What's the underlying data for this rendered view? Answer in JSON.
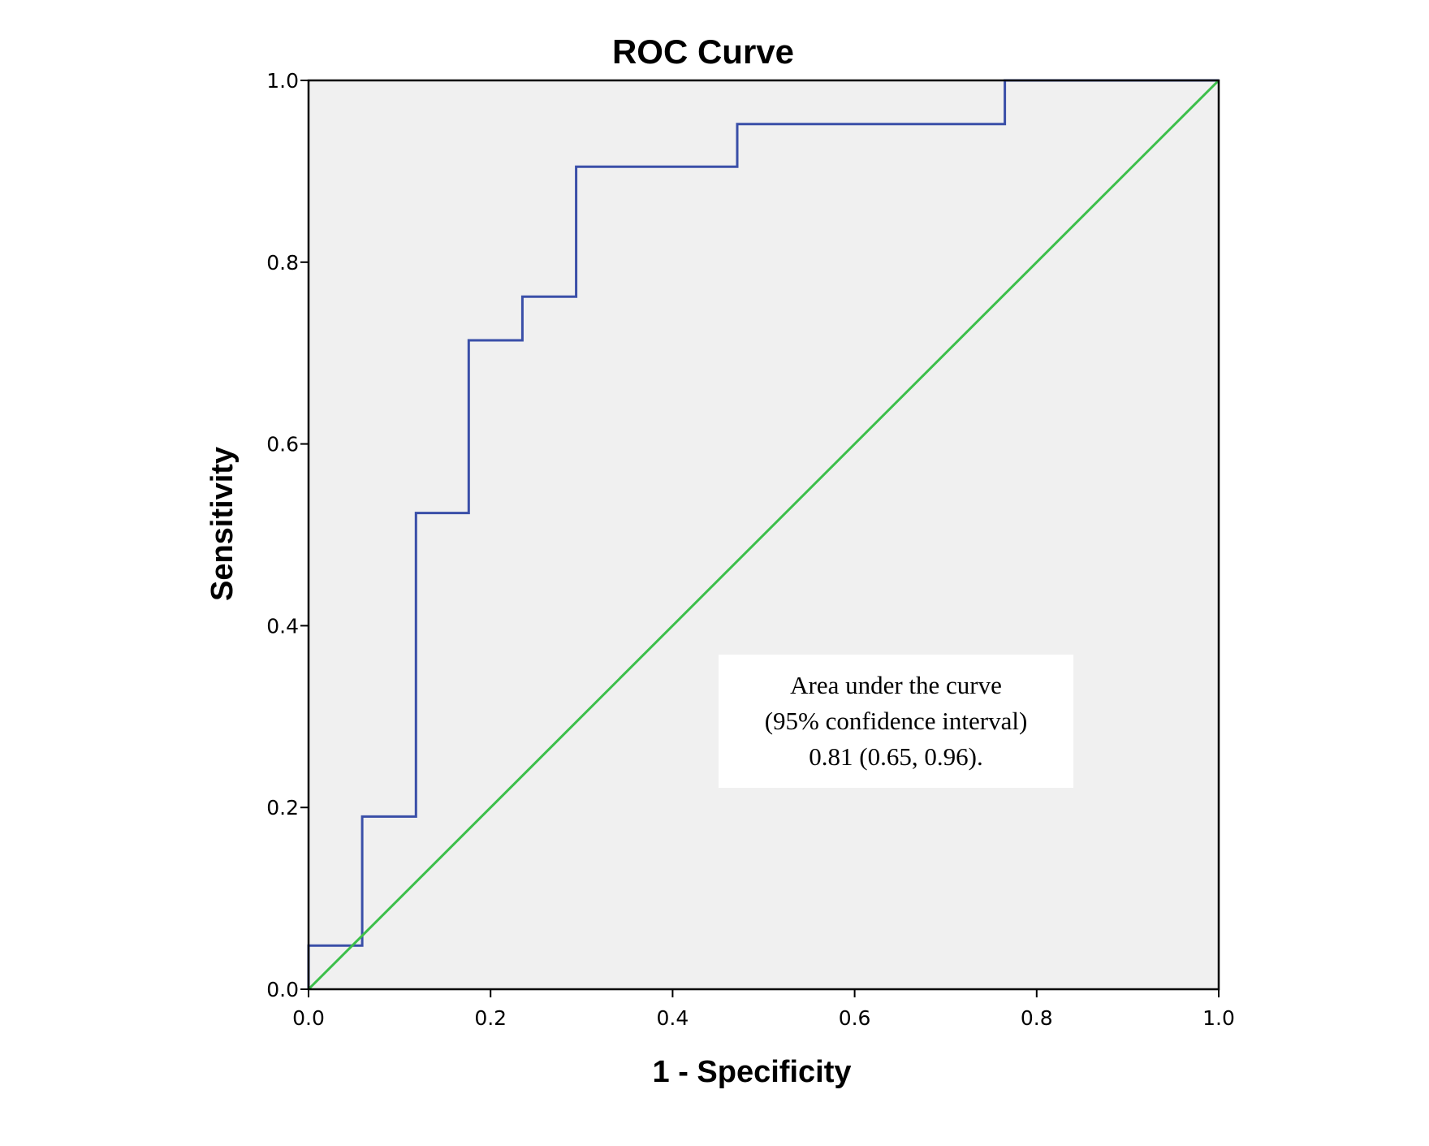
{
  "chart_data": {
    "type": "line",
    "title": "ROC Curve",
    "xlabel": "1 - Specificity",
    "ylabel": "Sensitivity",
    "xlim": [
      0,
      1
    ],
    "ylim": [
      0,
      1
    ],
    "x_ticks": [
      "0.0",
      "0.2",
      "0.4",
      "0.6",
      "0.8",
      "1.0"
    ],
    "y_ticks": [
      "0.0",
      "0.2",
      "0.4",
      "0.6",
      "0.8",
      "1.0"
    ],
    "grid": false,
    "plot_background": "#f0f0f0",
    "series": [
      {
        "color": "#3a4fa8",
        "step": true,
        "x": [
          0.0,
          0.0,
          0.059,
          0.059,
          0.118,
          0.118,
          0.176,
          0.176,
          0.235,
          0.235,
          0.294,
          0.294,
          0.471,
          0.471,
          0.765,
          0.765,
          1.0
        ],
        "y": [
          0.0,
          0.048,
          0.048,
          0.19,
          0.19,
          0.524,
          0.524,
          0.714,
          0.714,
          0.762,
          0.762,
          0.905,
          0.905,
          0.952,
          0.952,
          1.0,
          1.0
        ]
      },
      {
        "color": "#3cbf4a",
        "x": [
          0.0,
          1.0
        ],
        "y": [
          0.0,
          1.0
        ]
      }
    ],
    "annotation": {
      "lines": [
        "Area under the curve",
        "(95% confidence interval)",
        "0.81 (0.65, 0.96)."
      ]
    }
  }
}
